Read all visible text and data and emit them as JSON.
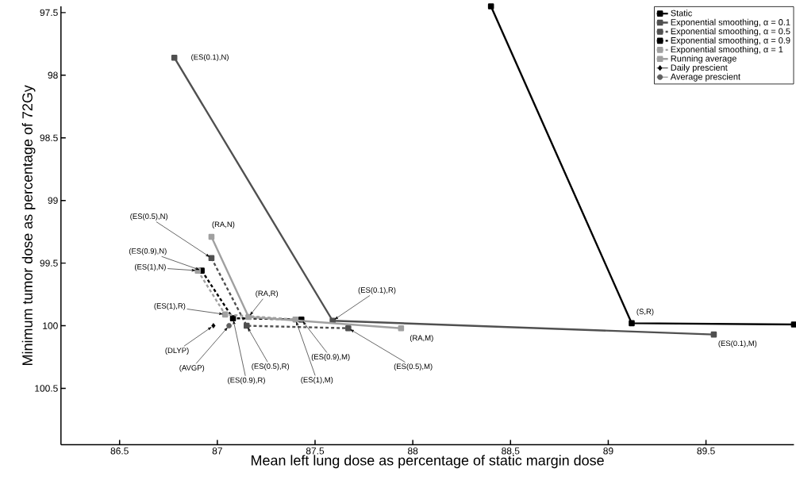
{
  "chart_data": {
    "type": "line",
    "xlabel": "Mean left lung dose as percentage of static margin dose",
    "ylabel": "Minimum tumor dose as percentage of 72Gy",
    "xlim": [
      86.2,
      89.95
    ],
    "ylim": [
      100.95,
      97.45
    ],
    "xticks": [
      86.5,
      87,
      87.5,
      88,
      88.5,
      89,
      89.5
    ],
    "yticks": [
      97.5,
      98,
      98.5,
      99,
      99.5,
      100,
      100.5
    ],
    "grid": false,
    "legend": "top right",
    "marker": "square",
    "line_style": "solid",
    "series": [
      {
        "name": "Static",
        "color": "#000000",
        "x": [
          88.4,
          89.12,
          89.95
        ],
        "values": [
          97.45,
          99.98,
          99.99
        ]
      },
      {
        "name": "Exponential smoothing, α = 0.1",
        "color": "#505050",
        "x": [
          86.78,
          87.59,
          89.54
        ],
        "values": [
          97.86,
          99.96,
          100.07
        ]
      },
      {
        "name": "Exponential smoothing, α = 0.5",
        "color": "#505050",
        "line_style": "dashed",
        "x": [
          86.97,
          87.15,
          87.67
        ],
        "values": [
          99.46,
          100.0,
          100.02
        ]
      },
      {
        "name": "Exponential smoothing, α = 0.9",
        "color": "#000000",
        "line_style": "dashed",
        "x": [
          86.92,
          87.08,
          87.43
        ],
        "values": [
          99.56,
          99.94,
          99.95
        ]
      },
      {
        "name": "Exponential smoothing, α = 1",
        "color": "#a0a0a0",
        "line_style": "dashed",
        "x": [
          86.9,
          87.04,
          87.4
        ],
        "values": [
          99.56,
          99.91,
          99.95
        ]
      },
      {
        "name": "Running average",
        "color": "#a0a0a0",
        "x": [
          86.97,
          87.16,
          87.94
        ],
        "values": [
          99.29,
          99.93,
          100.02
        ]
      },
      {
        "name": "Daily prescient",
        "type": "scatter",
        "marker": "diamond",
        "color": "#000000",
        "x": [
          86.98
        ],
        "values": [
          100.0
        ]
      },
      {
        "name": "Average prescient",
        "type": "scatter",
        "marker": "circle",
        "color": "#606060",
        "x": [
          87.06
        ],
        "values": [
          100.0
        ]
      }
    ],
    "annotations": [
      {
        "text": "(ES(0.1),N)",
        "x": 86.78,
        "y": 97.86
      },
      {
        "text": "(ES(0.5),N)",
        "x": 86.97,
        "y": 99.46
      },
      {
        "text": "(ES(0.9),N)",
        "x": 86.92,
        "y": 99.56
      },
      {
        "text": "(ES(1),N)",
        "x": 86.9,
        "y": 99.56
      },
      {
        "text": "(RA,N)",
        "x": 86.97,
        "y": 99.29
      },
      {
        "text": "(RA,R)",
        "x": 87.16,
        "y": 99.93
      },
      {
        "text": "(ES(1),R)",
        "x": 87.04,
        "y": 99.91
      },
      {
        "text": "(ES(0.1),R)",
        "x": 87.59,
        "y": 99.96
      },
      {
        "text": "(S,R)",
        "x": 89.12,
        "y": 99.98
      },
      {
        "text": "(ES(0.1),M)",
        "x": 89.54,
        "y": 100.07
      },
      {
        "text": "(RA,M)",
        "x": 87.94,
        "y": 100.02
      },
      {
        "text": "(ES(0.5),M)",
        "x": 87.67,
        "y": 100.02
      },
      {
        "text": "(ES(0.9),M)",
        "x": 87.43,
        "y": 99.95
      },
      {
        "text": "(ES(1),M)",
        "x": 87.4,
        "y": 99.95
      },
      {
        "text": "(ES(0.5),R)",
        "x": 87.15,
        "y": 100.0
      },
      {
        "text": "(ES(0.9),R)",
        "x": 87.08,
        "y": 99.94
      },
      {
        "text": "(AVGP)",
        "x": 87.06,
        "y": 100.0
      },
      {
        "text": "(DLYP)",
        "x": 86.98,
        "y": 100.0
      }
    ]
  }
}
